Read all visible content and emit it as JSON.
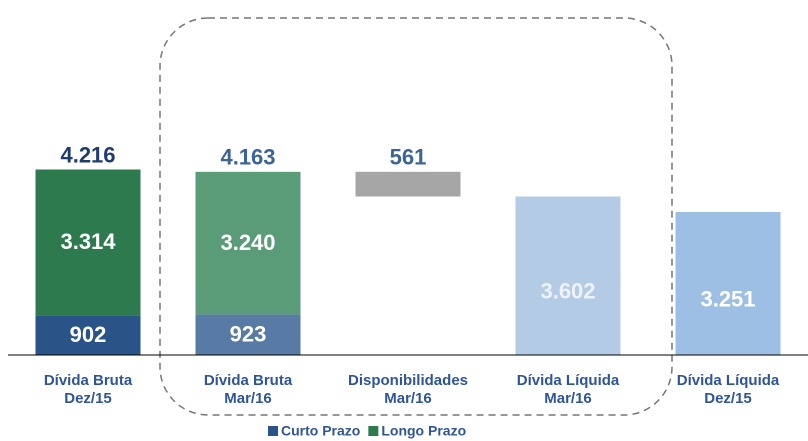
{
  "chart_data": {
    "type": "waterfall",
    "categories": [
      [
        "Dívida Bruta",
        "Dez/15"
      ],
      [
        "Dívida Bruta",
        "Mar/16"
      ],
      [
        "Disponibilidades",
        "Mar/16"
      ],
      [
        "Dívida Líquida",
        "Mar/16"
      ],
      [
        "Dívida Líquida",
        "Dez/15"
      ]
    ],
    "series": [
      {
        "name": "Curto Prazo",
        "color": "#2a5388",
        "colors": [
          "#2a5388",
          "#587ba5",
          null,
          null,
          null
        ],
        "values": [
          902,
          923,
          null,
          null,
          null
        ],
        "value_labels": [
          "902",
          "923",
          null,
          null,
          null
        ]
      },
      {
        "name": "Longo Prazo",
        "color": "#2e7a4f",
        "colors": [
          "#2e7a4f",
          "#5b9c78",
          null,
          null,
          null
        ],
        "values": [
          3314,
          3240,
          null,
          null,
          null
        ],
        "value_labels": [
          "3.314",
          "3.240",
          null,
          null,
          null
        ]
      }
    ],
    "totals": {
      "values": [
        4216,
        4163
      ],
      "value_labels": [
        "4.216",
        "4.163"
      ],
      "colors": [
        "#1f3c6e",
        "#3c6496"
      ]
    },
    "steps": {
      "values": [
        null,
        null,
        561,
        3602,
        3251
      ],
      "value_labels": [
        null,
        null,
        "561",
        "3.602",
        "3.251"
      ],
      "colors": [
        null,
        null,
        "#a6a6a6",
        "#b4cbe6",
        "#9dbfe4"
      ],
      "label_colors": [
        null,
        null,
        "#3c6496",
        "#eef3fa",
        "#ffffff"
      ]
    },
    "ylim": [
      0,
      5000
    ]
  }
}
